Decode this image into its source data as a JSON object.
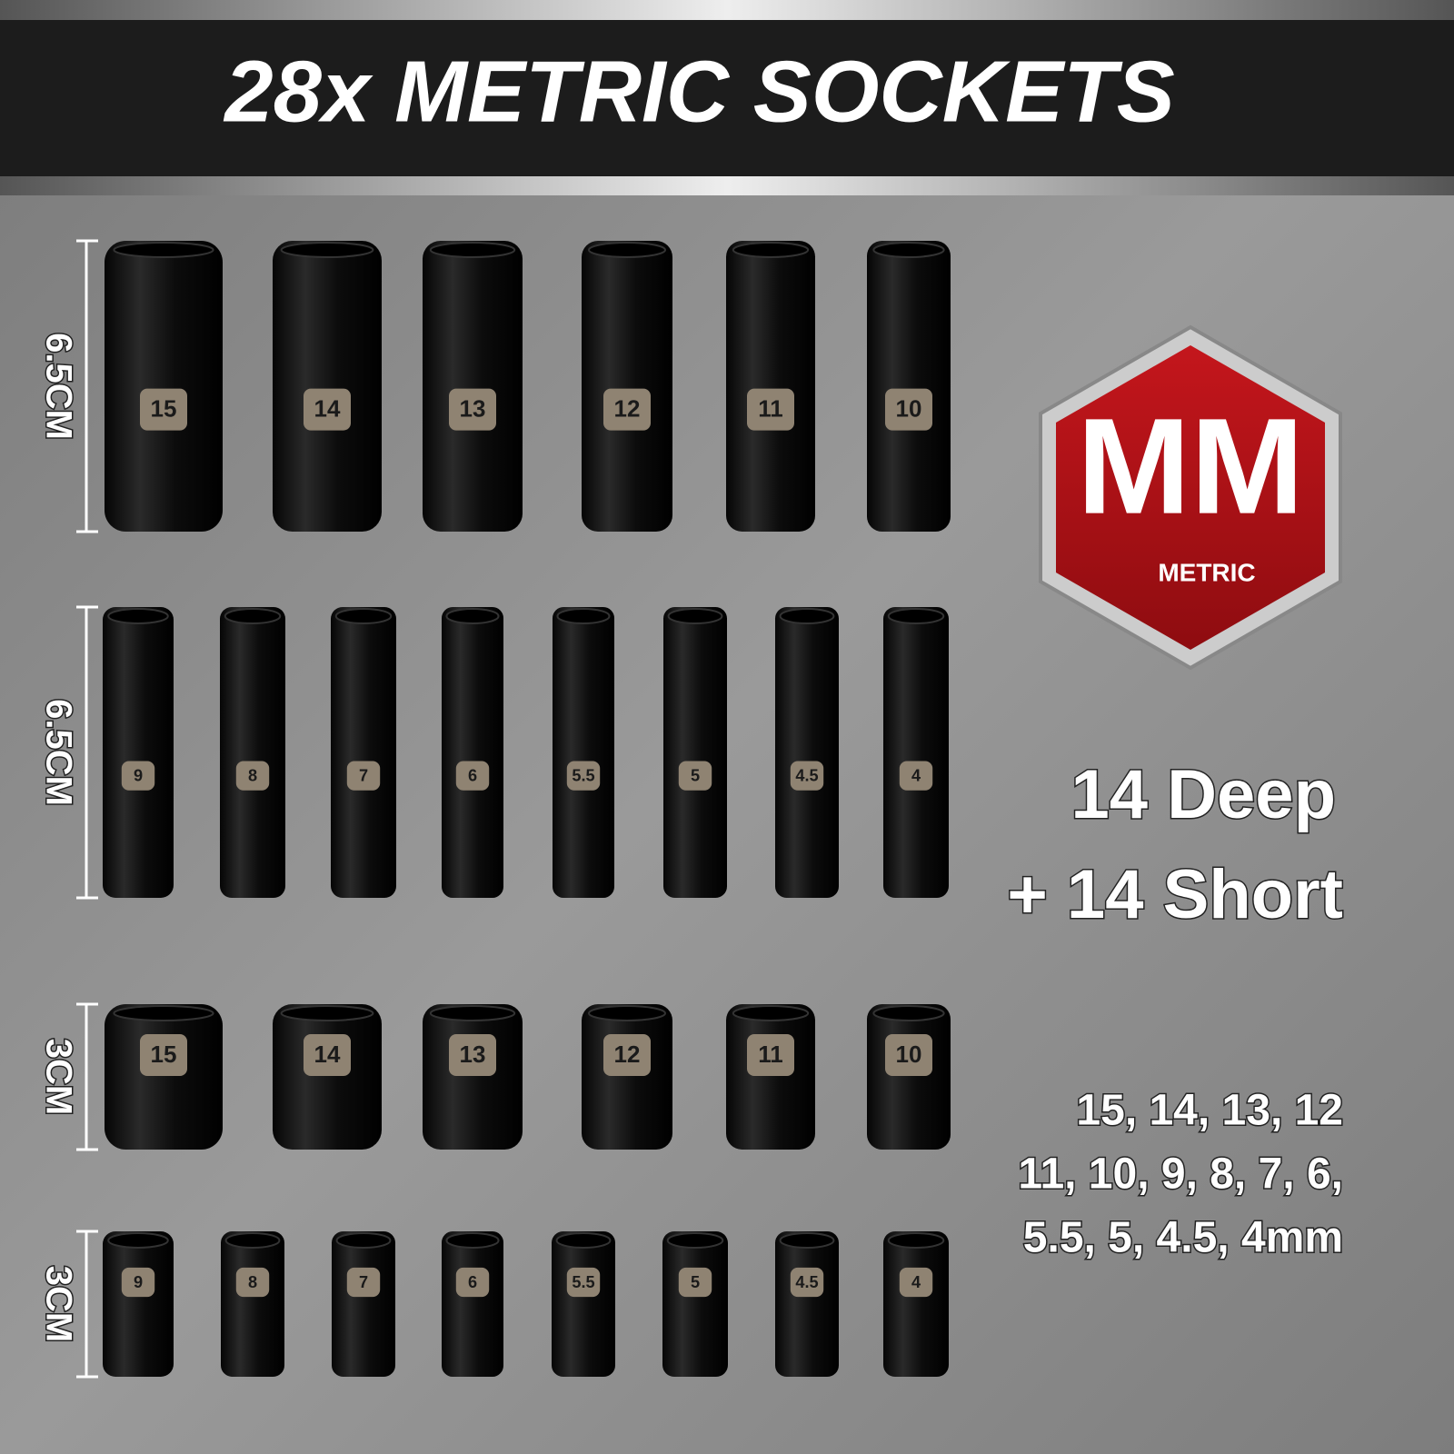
{
  "header": {
    "title": "28x METRIC SOCKETS"
  },
  "badge": {
    "title": "MM",
    "subtitle": "METRIC"
  },
  "summary": {
    "lines": [
      "14 Deep",
      "+ 14 Short"
    ]
  },
  "sizes": {
    "lines": [
      "15, 14, 13, 12",
      "11, 10, 9, 8, 7, 6,",
      "5.5, 5, 4.5, 4mm"
    ]
  },
  "rows": [
    {
      "label": "6.5CM",
      "sockets": [
        "15",
        "14",
        "13",
        "12",
        "11",
        "10"
      ]
    },
    {
      "label": "6.5CM",
      "sockets": [
        "9",
        "8",
        "7",
        "6",
        "5.5",
        "5",
        "4.5",
        "4"
      ]
    },
    {
      "label": "3CM",
      "sockets": [
        "15",
        "14",
        "13",
        "12",
        "11",
        "10"
      ]
    },
    {
      "label": "3CM",
      "sockets": [
        "9",
        "8",
        "7",
        "6",
        "5.5",
        "5",
        "4.5",
        "4"
      ]
    }
  ]
}
